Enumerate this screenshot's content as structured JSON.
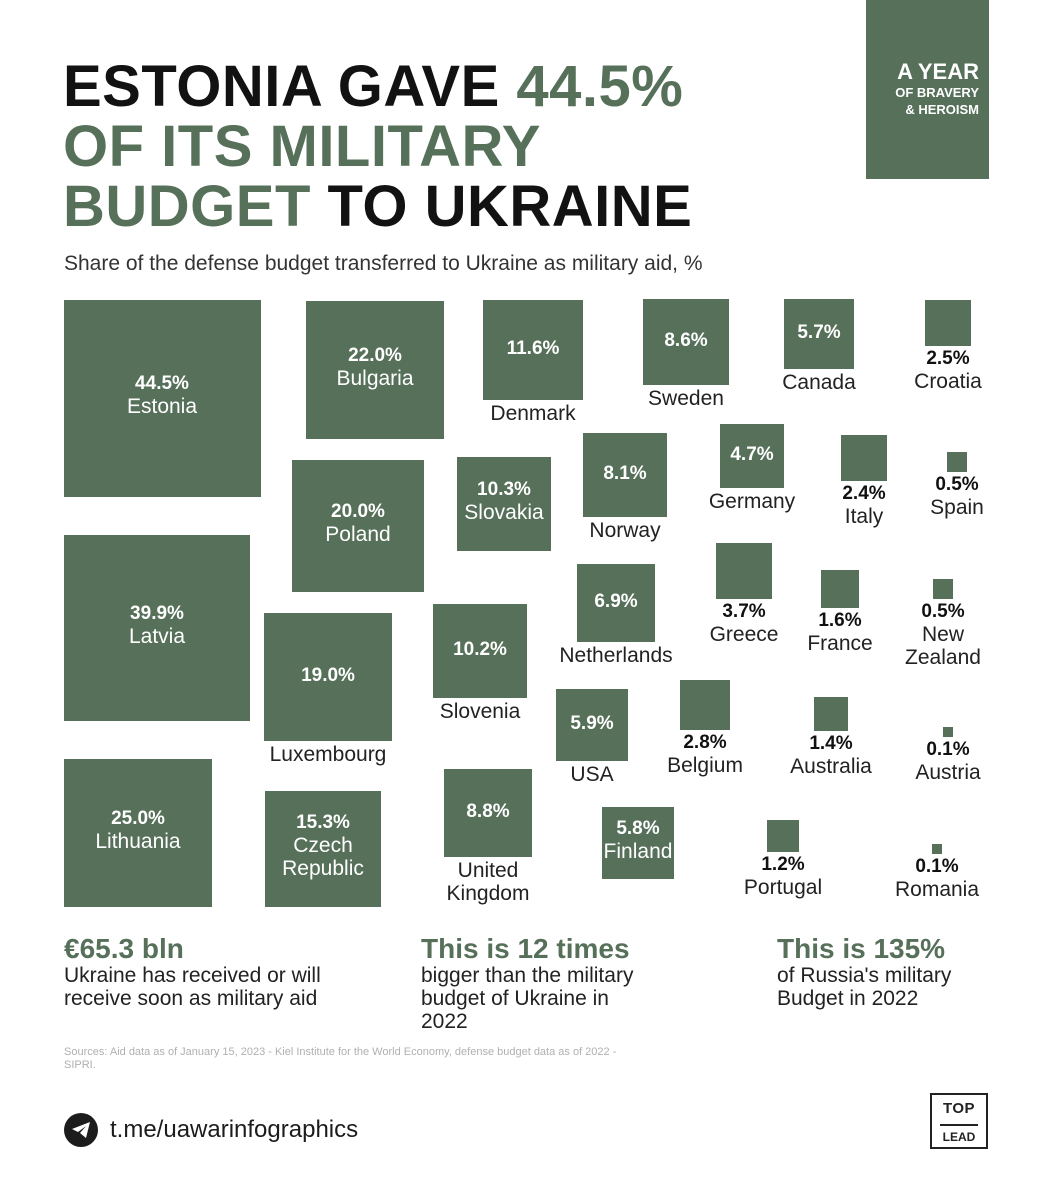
{
  "title": {
    "line1_dark": "ESTONIA GAVE ",
    "line1_green": "44.5%",
    "line2_green": "OF ITS MILITARY",
    "line3_green": "BUDGET",
    "line3_dark": " TO UKRAINE"
  },
  "badge": {
    "line1": "A YEAR",
    "line2": "OF BRAVERY",
    "line3": "& HEROISM"
  },
  "subtitle": "Share of the defense budget transferred to Ukraine as military aid, %",
  "chart_data": {
    "type": "proportional-squares",
    "title": "ESTONIA GAVE 44.5% OF ITS MILITARY BUDGET TO UKRAINE",
    "subtitle": "Share of the defense budget transferred to Ukraine as military aid, %",
    "unit": "%",
    "color": "#56705a",
    "categories": [
      "Estonia",
      "Latvia",
      "Lithuania",
      "Bulgaria",
      "Poland",
      "Luxembourg",
      "Czech Republic",
      "Denmark",
      "Slovakia",
      "Slovenia",
      "United Kingdom",
      "Norway",
      "Netherlands",
      "USA",
      "Finland",
      "Sweden",
      "Germany",
      "Greece",
      "Belgium",
      "Portugal",
      "Canada",
      "Italy",
      "France",
      "Australia",
      "Croatia",
      "Spain",
      "New Zealand",
      "Austria",
      "Romania"
    ],
    "values": [
      44.5,
      39.9,
      25.0,
      22.0,
      20.0,
      19.0,
      15.3,
      11.6,
      10.3,
      10.2,
      8.8,
      8.1,
      6.9,
      5.9,
      5.8,
      8.6,
      4.7,
      3.7,
      2.8,
      1.2,
      5.7,
      2.4,
      1.6,
      1.4,
      2.5,
      0.5,
      0.5,
      0.1,
      0.1
    ],
    "value_labels": [
      "44.5%",
      "39.9%",
      "25.0%",
      "22.0%",
      "20.0%",
      "19.0%",
      "15.3%",
      "11.6%",
      "10.3%",
      "10.2%",
      "8.8%",
      "8.1%",
      "6.9%",
      "5.9%",
      "5.8%",
      "8.6%",
      "4.7%",
      "3.7%",
      "2.8%",
      "1.2%",
      "5.7%",
      "2.4%",
      "1.6%",
      "1.4%",
      "2.5%",
      "0.5%",
      "0.5%",
      "0.1%",
      "0.1%"
    ],
    "name_labels": [
      "Estonia",
      "Latvia",
      "Lithuania",
      "Bulgaria",
      "Poland",
      "Luxembourg",
      "Czech\nRepublic",
      "Denmark",
      "Slovakia",
      "Slovenia",
      "United\nKingdom",
      "Norway",
      "Netherlands",
      "USA",
      "Finland",
      "Sweden",
      "Germany",
      "Greece",
      "Belgium",
      "Portugal",
      "Canada",
      "Italy",
      "France",
      "Australia",
      "Croatia",
      "Spain",
      "New\nZealand",
      "Austria",
      "Romania"
    ]
  },
  "stats": [
    {
      "big": "€65.3 bln",
      "desc": "Ukraine has received or will receive soon as military aid"
    },
    {
      "big": "This is 12 times",
      "desc": "bigger than the military budget of Ukraine in 2022"
    },
    {
      "big": "This is 135%",
      "desc": "of Russia's military Budget in 2022"
    }
  ],
  "sources": "Sources: Aid data as of January 15, 2023 - Kiel Institute for the World Economy, defense budget data as of 2022 - SIPRI.",
  "telegram": {
    "icon": "telegram-icon",
    "link": "t.me/uawarinfographics"
  },
  "logo": {
    "top": "TOP",
    "bottom": "LEAD"
  }
}
